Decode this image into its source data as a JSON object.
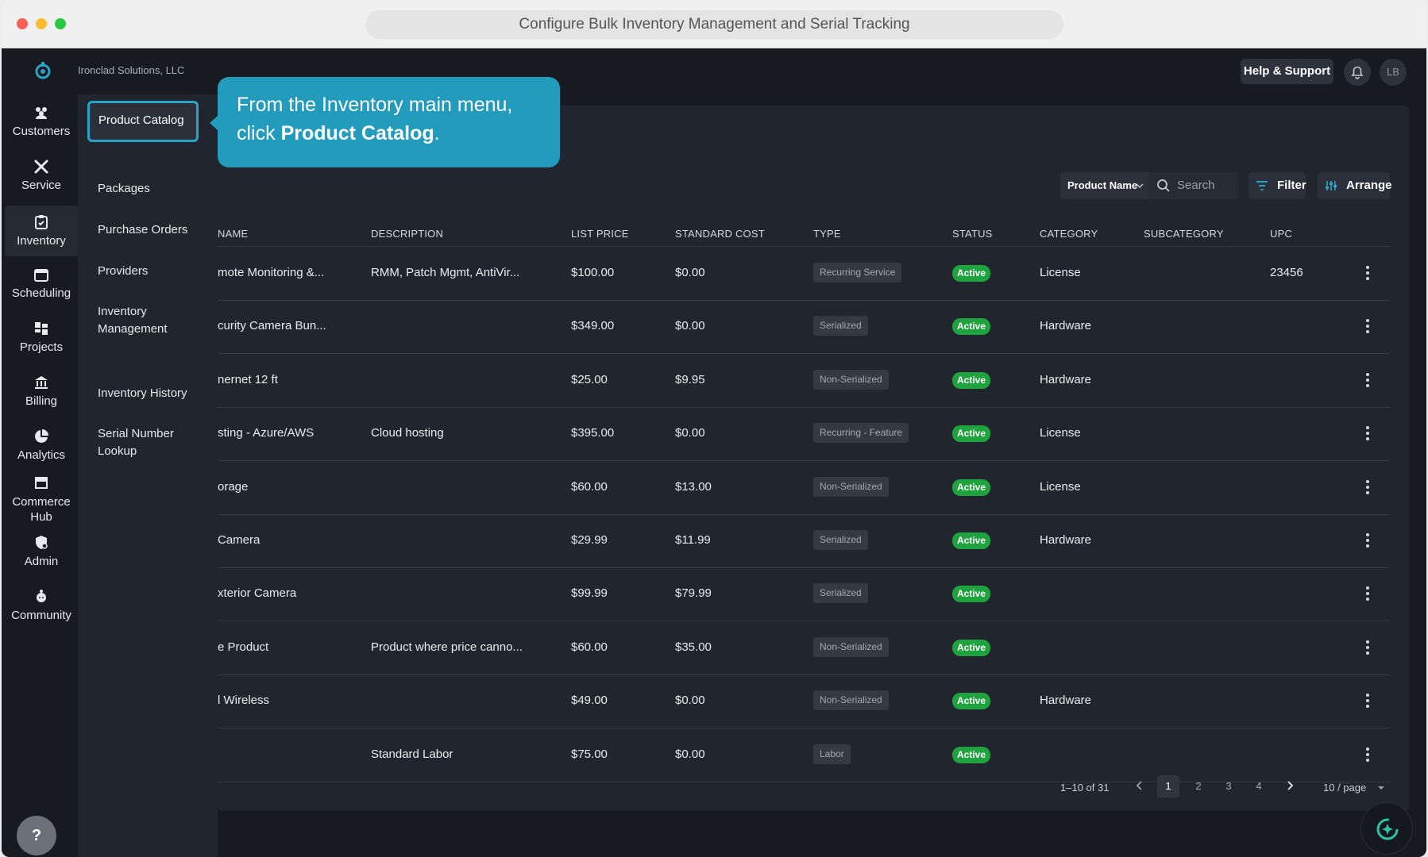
{
  "window": {
    "title": "Configure Bulk Inventory Management and Serial Tracking"
  },
  "topbar": {
    "company": "Ironclad Solutions, LLC",
    "help_label": "Help & Support",
    "avatar_initials": "LB"
  },
  "nav": {
    "items": [
      {
        "label": "Customers",
        "icon": "customers-icon"
      },
      {
        "label": "Service",
        "icon": "service-icon"
      },
      {
        "label": "Inventory",
        "icon": "inventory-icon",
        "active": true
      },
      {
        "label": "Scheduling",
        "icon": "calendar-icon"
      },
      {
        "label": "Projects",
        "icon": "projects-icon"
      },
      {
        "label": "Billing",
        "icon": "billing-icon"
      },
      {
        "label": "Analytics",
        "icon": "pie-chart-icon"
      },
      {
        "label": "Commerce Hub",
        "icon": "store-icon"
      },
      {
        "label": "Admin",
        "icon": "admin-icon"
      },
      {
        "label": "Community",
        "icon": "community-icon"
      }
    ],
    "help_fab": "?"
  },
  "submenu": {
    "active": "Product Catalog",
    "items": [
      "Packages",
      "Purchase Orders",
      "Providers",
      "Inventory Management",
      "Inventory History",
      "Serial Number Lookup"
    ]
  },
  "callout": {
    "text_before": "From the Inventory main menu, click ",
    "text_bold": "Product Catalog",
    "text_after": "."
  },
  "toolbar": {
    "field_select": "Product Name",
    "search_placeholder": "Search",
    "filter_label": "Filter",
    "arrange_label": "Arrange"
  },
  "table": {
    "headers": [
      "NAME",
      "DESCRIPTION",
      "LIST PRICE",
      "STANDARD COST",
      "TYPE",
      "STATUS",
      "CATEGORY",
      "SUBCATEGORY",
      "UPC"
    ],
    "rows": [
      {
        "name": "mote Monitoring &...",
        "description": "RMM, Patch Mgmt, AntiVir...",
        "list_price": "$100.00",
        "standard_cost": "$0.00",
        "type": "Recurring Service",
        "status": "Active",
        "category": "License",
        "subcategory": "",
        "upc": "23456"
      },
      {
        "name": "curity Camera Bun...",
        "description": "",
        "list_price": "$349.00",
        "standard_cost": "$0.00",
        "type": "Serialized",
        "status": "Active",
        "category": "Hardware",
        "subcategory": "",
        "upc": ""
      },
      {
        "name": "nernet 12 ft",
        "description": "",
        "list_price": "$25.00",
        "standard_cost": "$9.95",
        "type": "Non-Serialized",
        "status": "Active",
        "category": "Hardware",
        "subcategory": "",
        "upc": ""
      },
      {
        "name": "sting - Azure/AWS",
        "description": "Cloud hosting",
        "list_price": "$395.00",
        "standard_cost": "$0.00",
        "type": "Recurring - Feature",
        "status": "Active",
        "category": "License",
        "subcategory": "",
        "upc": ""
      },
      {
        "name": "orage",
        "description": "",
        "list_price": "$60.00",
        "standard_cost": "$13.00",
        "type": "Non-Serialized",
        "status": "Active",
        "category": "License",
        "subcategory": "",
        "upc": ""
      },
      {
        "name": "Camera",
        "description": "",
        "list_price": "$29.99",
        "standard_cost": "$11.99",
        "type": "Serialized",
        "status": "Active",
        "category": "Hardware",
        "subcategory": "",
        "upc": ""
      },
      {
        "name": "xterior Camera",
        "description": "",
        "list_price": "$99.99",
        "standard_cost": "$79.99",
        "type": "Serialized",
        "status": "Active",
        "category": "",
        "subcategory": "",
        "upc": ""
      },
      {
        "name": "e Product",
        "description": "Product where price canno...",
        "list_price": "$60.00",
        "standard_cost": "$35.00",
        "type": "Non-Serialized",
        "status": "Active",
        "category": "",
        "subcategory": "",
        "upc": ""
      },
      {
        "name": "l Wireless",
        "description": "",
        "list_price": "$49.00",
        "standard_cost": "$0.00",
        "type": "Non-Serialized",
        "status": "Active",
        "category": "Hardware",
        "subcategory": "",
        "upc": ""
      },
      {
        "name": "",
        "description": "Standard Labor",
        "list_price": "$75.00",
        "standard_cost": "$0.00",
        "type": "Labor",
        "status": "Active",
        "category": "",
        "subcategory": "",
        "upc": ""
      }
    ]
  },
  "pagination": {
    "range": "1–10 of 31",
    "pages": [
      "1",
      "2",
      "3",
      "4"
    ],
    "current": "1",
    "page_size": "10 / page"
  },
  "colors": {
    "accent": "#229bbd",
    "status_active": "#1ea33e",
    "background": "#171a21",
    "panel": "#21252e"
  }
}
